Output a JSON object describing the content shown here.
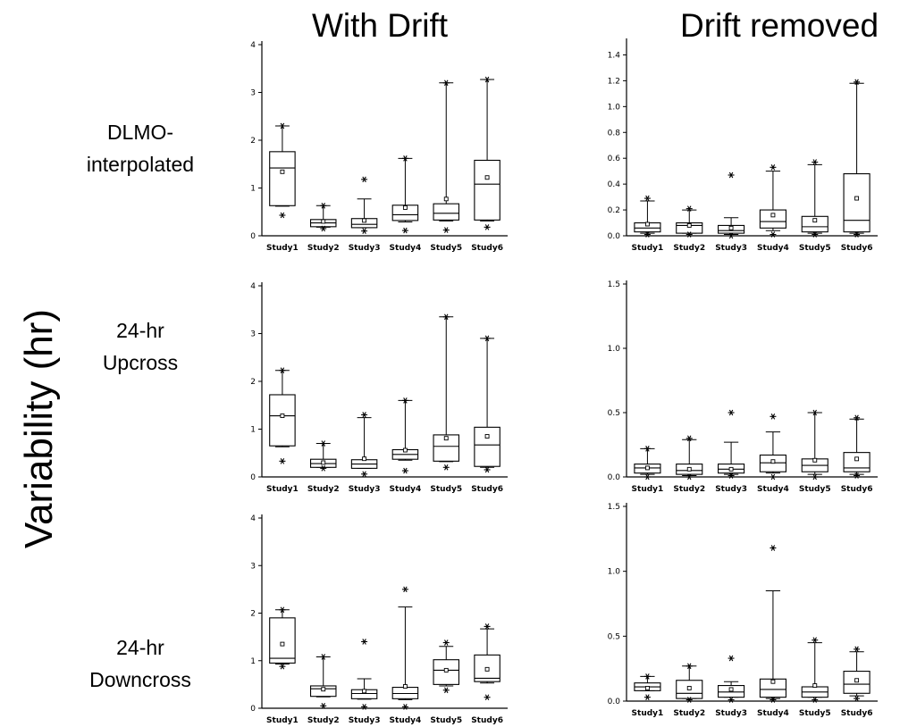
{
  "figure": {
    "column_titles": [
      "With Drift",
      "Drift removed"
    ],
    "y_axis_title": "Variability (hr)",
    "row_labels": [
      [
        "DLMO-",
        "interpolated"
      ],
      [
        "24-hr",
        "Upcross"
      ],
      [
        "24-hr",
        "Downcross"
      ]
    ]
  },
  "chart_data": [
    {
      "type": "box",
      "row": "DLMO-interpolated",
      "column": "With Drift",
      "categories": [
        "Study1",
        "Study2",
        "Study3",
        "Study4",
        "Study5",
        "Study6"
      ],
      "ylim": [
        0,
        4
      ],
      "yticks": [
        "0",
        "1",
        "2",
        "3",
        "4"
      ],
      "boxes": [
        {
          "whisker_low": 0.62,
          "q1": 0.63,
          "median": 1.42,
          "q3": 1.76,
          "whisker_high": 2.3,
          "mean": 1.34,
          "outliers": [
            0.43,
            2.3
          ]
        },
        {
          "whisker_low": 0.18,
          "q1": 0.19,
          "median": 0.27,
          "q3": 0.34,
          "whisker_high": 0.63,
          "mean": 0.3,
          "outliers": [
            0.15,
            0.63
          ]
        },
        {
          "whisker_low": 0.17,
          "q1": 0.17,
          "median": 0.24,
          "q3": 0.36,
          "whisker_high": 0.77,
          "mean": 0.32,
          "outliers": [
            0.1,
            1.18
          ]
        },
        {
          "whisker_low": 0.29,
          "q1": 0.32,
          "median": 0.44,
          "q3": 0.64,
          "whisker_high": 1.62,
          "mean": 0.59,
          "outliers": [
            0.11,
            1.62
          ]
        },
        {
          "whisker_low": 0.31,
          "q1": 0.33,
          "median": 0.47,
          "q3": 0.67,
          "whisker_high": 3.2,
          "mean": 0.77,
          "outliers": [
            0.12,
            3.2
          ]
        },
        {
          "whisker_low": 0.31,
          "q1": 0.33,
          "median": 1.08,
          "q3": 1.58,
          "whisker_high": 3.27,
          "mean": 1.22,
          "outliers": [
            0.18,
            3.27
          ]
        }
      ]
    },
    {
      "type": "box",
      "row": "DLMO-interpolated",
      "column": "Drift removed",
      "categories": [
        "Study1",
        "Study2",
        "Study3",
        "Study4",
        "Study5",
        "Study6"
      ],
      "ylim": [
        0,
        1.5
      ],
      "yticks": [
        "0.0",
        "0.2",
        "0.4",
        "0.6",
        "0.8",
        "1.0",
        "1.2",
        "1.4"
      ],
      "boxes": [
        {
          "whisker_low": 0.02,
          "q1": 0.03,
          "median": 0.06,
          "q3": 0.1,
          "whisker_high": 0.27,
          "mean": 0.09,
          "outliers": [
            0.01,
            0.29
          ]
        },
        {
          "whisker_low": 0.02,
          "q1": 0.02,
          "median": 0.08,
          "q3": 0.1,
          "whisker_high": 0.2,
          "mean": 0.08,
          "outliers": [
            0.01,
            0.21
          ]
        },
        {
          "whisker_low": 0.01,
          "q1": 0.02,
          "median": 0.04,
          "q3": 0.08,
          "whisker_high": 0.14,
          "mean": 0.06,
          "outliers": [
            0.0,
            0.47
          ]
        },
        {
          "whisker_low": 0.04,
          "q1": 0.06,
          "median": 0.11,
          "q3": 0.2,
          "whisker_high": 0.5,
          "mean": 0.16,
          "outliers": [
            0.01,
            0.53
          ]
        },
        {
          "whisker_low": 0.02,
          "q1": 0.03,
          "median": 0.07,
          "q3": 0.15,
          "whisker_high": 0.55,
          "mean": 0.12,
          "outliers": [
            0.01,
            0.57
          ]
        },
        {
          "whisker_low": 0.02,
          "q1": 0.03,
          "median": 0.12,
          "q3": 0.48,
          "whisker_high": 1.18,
          "mean": 0.29,
          "outliers": [
            0.01,
            1.19
          ]
        }
      ]
    },
    {
      "type": "box",
      "row": "24-hr Upcross",
      "column": "With Drift",
      "categories": [
        "Study1",
        "Study2",
        "Study3",
        "Study4",
        "Study5",
        "Study6"
      ],
      "ylim": [
        0,
        4
      ],
      "yticks": [
        "0",
        "1",
        "2",
        "3",
        "4"
      ],
      "boxes": [
        {
          "whisker_low": 0.63,
          "q1": 0.65,
          "median": 1.28,
          "q3": 1.72,
          "whisker_high": 2.23,
          "mean": 1.28,
          "outliers": [
            0.33,
            2.23
          ]
        },
        {
          "whisker_low": 0.2,
          "q1": 0.2,
          "median": 0.28,
          "q3": 0.37,
          "whisker_high": 0.7,
          "mean": 0.3,
          "outliers": [
            0.18,
            0.7
          ]
        },
        {
          "whisker_low": 0.18,
          "q1": 0.18,
          "median": 0.27,
          "q3": 0.36,
          "whisker_high": 1.24,
          "mean": 0.38,
          "outliers": [
            0.06,
            1.3
          ]
        },
        {
          "whisker_low": 0.35,
          "q1": 0.37,
          "median": 0.47,
          "q3": 0.57,
          "whisker_high": 1.6,
          "mean": 0.56,
          "outliers": [
            0.13,
            1.6
          ]
        },
        {
          "whisker_low": 0.32,
          "q1": 0.33,
          "median": 0.64,
          "q3": 0.88,
          "whisker_high": 3.35,
          "mean": 0.81,
          "outliers": [
            0.2,
            3.35
          ]
        },
        {
          "whisker_low": 0.2,
          "q1": 0.22,
          "median": 0.67,
          "q3": 1.04,
          "whisker_high": 2.9,
          "mean": 0.85,
          "outliers": [
            0.15,
            2.9
          ]
        }
      ]
    },
    {
      "type": "box",
      "row": "24-hr Upcross",
      "column": "Drift removed",
      "categories": [
        "Study1",
        "Study2",
        "Study3",
        "Study4",
        "Study5",
        "Study6"
      ],
      "ylim": [
        0,
        1.5
      ],
      "yticks": [
        "0.0",
        "0.5",
        "1.0",
        "1.5"
      ],
      "boxes": [
        {
          "whisker_low": 0.02,
          "q1": 0.03,
          "median": 0.07,
          "q3": 0.1,
          "whisker_high": 0.22,
          "mean": 0.07,
          "outliers": [
            0.0,
            0.22
          ]
        },
        {
          "whisker_low": 0.01,
          "q1": 0.02,
          "median": 0.05,
          "q3": 0.1,
          "whisker_high": 0.29,
          "mean": 0.06,
          "outliers": [
            0.0,
            0.3
          ]
        },
        {
          "whisker_low": 0.02,
          "q1": 0.03,
          "median": 0.06,
          "q3": 0.1,
          "whisker_high": 0.27,
          "mean": 0.06,
          "outliers": [
            0.01,
            0.5
          ]
        },
        {
          "whisker_low": 0.03,
          "q1": 0.04,
          "median": 0.11,
          "q3": 0.17,
          "whisker_high": 0.35,
          "mean": 0.12,
          "outliers": [
            0.0,
            0.47
          ]
        },
        {
          "whisker_low": 0.02,
          "q1": 0.04,
          "median": 0.09,
          "q3": 0.14,
          "whisker_high": 0.5,
          "mean": 0.13,
          "outliers": [
            0.0,
            0.5
          ]
        },
        {
          "whisker_low": 0.02,
          "q1": 0.04,
          "median": 0.07,
          "q3": 0.19,
          "whisker_high": 0.45,
          "mean": 0.14,
          "outliers": [
            0.01,
            0.46
          ]
        }
      ]
    },
    {
      "type": "box",
      "row": "24-hr Downcross",
      "column": "With Drift",
      "categories": [
        "Study1",
        "Study2",
        "Study3",
        "Study4",
        "Study5",
        "Study6"
      ],
      "ylim": [
        0,
        4
      ],
      "yticks": [
        "0",
        "1",
        "2",
        "3",
        "4"
      ],
      "boxes": [
        {
          "whisker_low": 0.93,
          "q1": 0.95,
          "median": 1.05,
          "q3": 1.9,
          "whisker_high": 2.07,
          "mean": 1.35,
          "outliers": [
            0.88,
            2.07
          ]
        },
        {
          "whisker_low": 0.24,
          "q1": 0.25,
          "median": 0.41,
          "q3": 0.47,
          "whisker_high": 1.08,
          "mean": 0.4,
          "outliers": [
            0.05,
            1.08
          ]
        },
        {
          "whisker_low": 0.19,
          "q1": 0.2,
          "median": 0.31,
          "q3": 0.39,
          "whisker_high": 0.62,
          "mean": 0.36,
          "outliers": [
            0.03,
            1.4
          ]
        },
        {
          "whisker_low": 0.18,
          "q1": 0.2,
          "median": 0.31,
          "q3": 0.44,
          "whisker_high": 2.13,
          "mean": 0.46,
          "outliers": [
            0.03,
            2.5
          ]
        },
        {
          "whisker_low": 0.47,
          "q1": 0.5,
          "median": 0.8,
          "q3": 1.02,
          "whisker_high": 1.3,
          "mean": 0.8,
          "outliers": [
            0.38,
            1.38
          ]
        },
        {
          "whisker_low": 0.53,
          "q1": 0.56,
          "median": 0.63,
          "q3": 1.12,
          "whisker_high": 1.67,
          "mean": 0.82,
          "outliers": [
            0.23,
            1.72
          ]
        }
      ]
    },
    {
      "type": "box",
      "row": "24-hr Downcross",
      "column": "Drift removed",
      "categories": [
        "Study1",
        "Study2",
        "Study3",
        "Study4",
        "Study5",
        "Study6"
      ],
      "ylim": [
        0,
        1.5
      ],
      "yticks": [
        "0.0",
        "0.5",
        "1.0",
        "1.5"
      ],
      "boxes": [
        {
          "whisker_low": 0.08,
          "q1": 0.08,
          "median": 0.11,
          "q3": 0.14,
          "whisker_high": 0.19,
          "mean": 0.1,
          "outliers": [
            0.03,
            0.19
          ]
        },
        {
          "whisker_low": 0.02,
          "q1": 0.02,
          "median": 0.06,
          "q3": 0.16,
          "whisker_high": 0.27,
          "mean": 0.1,
          "outliers": [
            0.01,
            0.27
          ]
        },
        {
          "whisker_low": 0.03,
          "q1": 0.03,
          "median": 0.07,
          "q3": 0.12,
          "whisker_high": 0.15,
          "mean": 0.09,
          "outliers": [
            0.01,
            0.33
          ]
        },
        {
          "whisker_low": 0.02,
          "q1": 0.03,
          "median": 0.09,
          "q3": 0.17,
          "whisker_high": 0.85,
          "mean": 0.15,
          "outliers": [
            0.01,
            1.18
          ]
        },
        {
          "whisker_low": 0.03,
          "q1": 0.03,
          "median": 0.07,
          "q3": 0.11,
          "whisker_high": 0.45,
          "mean": 0.12,
          "outliers": [
            0.01,
            0.47
          ]
        },
        {
          "whisker_low": 0.04,
          "q1": 0.06,
          "median": 0.13,
          "q3": 0.23,
          "whisker_high": 0.38,
          "mean": 0.16,
          "outliers": [
            0.02,
            0.4
          ]
        }
      ]
    }
  ]
}
